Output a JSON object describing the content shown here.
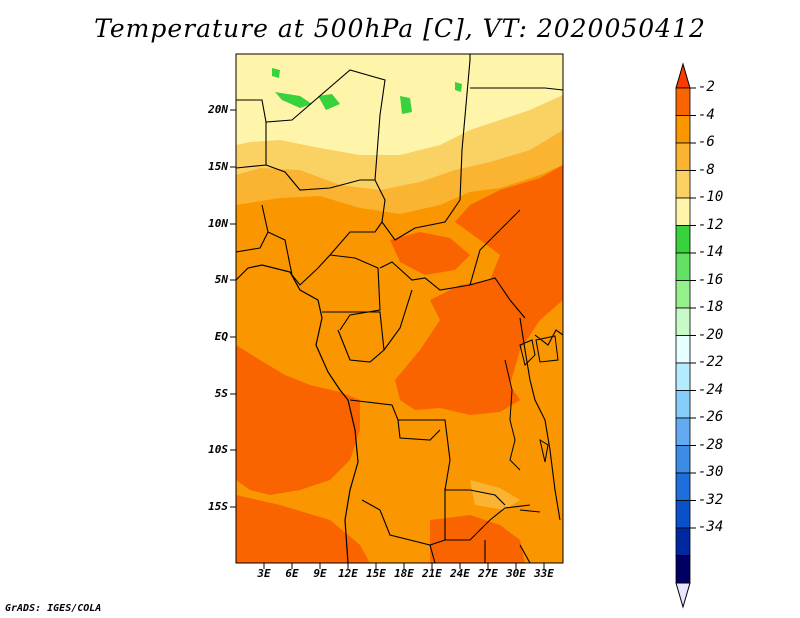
{
  "title": "Temperature at 500hPa [C], VT: 2020050412",
  "credit": "GrADS: IGES/COLA",
  "lat_labels": [
    "20N",
    "15N",
    "10N",
    "5N",
    "EQ",
    "5S",
    "10S",
    "15S"
  ],
  "lon_labels": [
    "3E",
    "6E",
    "9E",
    "12E",
    "15E",
    "18E",
    "21E",
    "24E",
    "27E",
    "30E",
    "33E"
  ],
  "colorbar": {
    "labels": [
      "-2",
      "-4",
      "-6",
      "-8",
      "-10",
      "-12",
      "-14",
      "-16",
      "-18",
      "-20",
      "-22",
      "-24",
      "-26",
      "-28",
      "-30",
      "-32",
      "-34"
    ],
    "colors": [
      "#fa3c00",
      "#fa6400",
      "#fa9600",
      "#fab432",
      "#fad264",
      "#fff5aa",
      "#37d23c",
      "#64e164",
      "#96f08c",
      "#c8fac8",
      "#e6ffff",
      "#b4ebff",
      "#87cdfa",
      "#64aaf0",
      "#3c8ce6",
      "#1e6edc",
      "#0a50c8",
      "#0028a0",
      "#000064",
      "#e6e6ff"
    ]
  },
  "map_colors": {
    "c_m3": "#fa6400",
    "c_m5": "#fa9600",
    "c_m7": "#fab432",
    "c_m9": "#fad264",
    "c_m11": "#fff5aa",
    "c_m13": "#37d23c",
    "c_m15": "#64e164"
  }
}
